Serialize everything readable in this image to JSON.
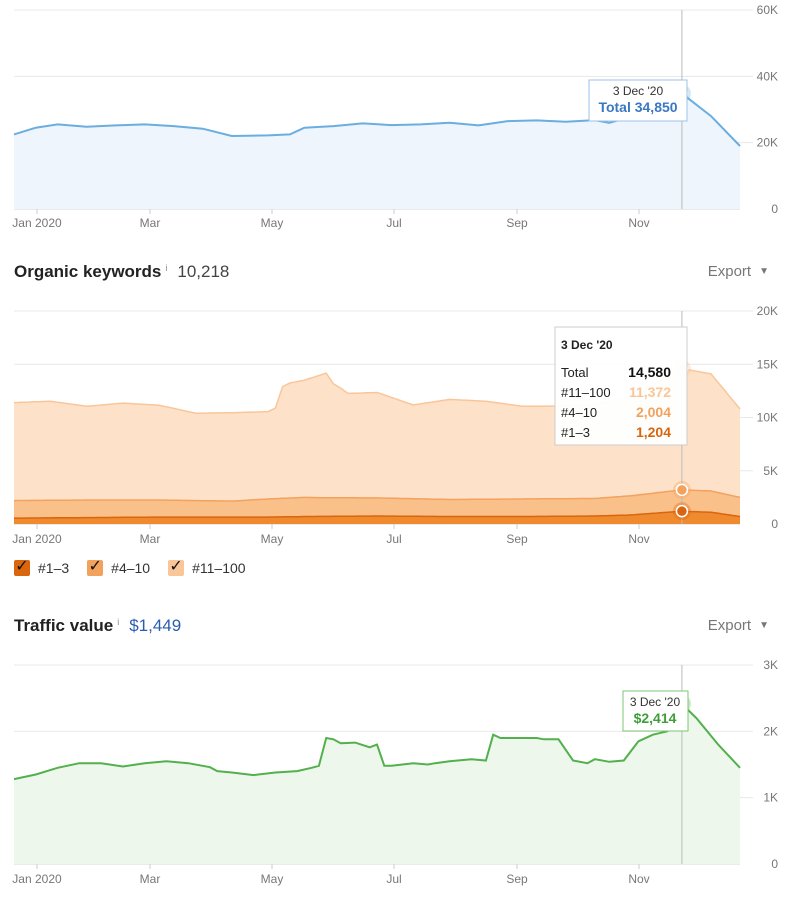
{
  "colors": {
    "traffic_line": "#6aaee0",
    "traffic_fill": "#eef5fd",
    "kw_11_100": "#f9c69a",
    "kw_4_10": "#f3a25e",
    "kw_1_3": "#ec7a1c",
    "value_line": "#52b04d",
    "value_fill": "#eef7ec",
    "tooltip_blue": "#3a78c3",
    "tooltip_green": "#3f9e3a",
    "grid": "#e8e8e8",
    "axis_text": "#777777"
  },
  "x_axis_labels": [
    "Jan 2020",
    "Mar",
    "May",
    "Jul",
    "Sep",
    "Nov"
  ],
  "organic_keywords": {
    "title": "Organic keywords",
    "info_icon": "i",
    "value": "10,218",
    "export_label": "Export"
  },
  "traffic_value": {
    "title": "Traffic value",
    "info_icon": "i",
    "value": "$1,449",
    "export_label": "Export"
  },
  "legend": [
    {
      "label": "#1–3",
      "color": "#d9650f"
    },
    {
      "label": "#4–10",
      "color": "#f3a25e"
    },
    {
      "label": "#11–100",
      "color": "#f9c69a"
    }
  ],
  "chart_data": [
    {
      "type": "area",
      "ylim": [
        0,
        60000
      ],
      "y_ticks": [
        "60K",
        "40K",
        "20K",
        "0"
      ],
      "y_tick_values": [
        60000,
        40000,
        20000,
        0
      ],
      "x_ticks": [
        "Jan 2020",
        "Mar",
        "May",
        "Jul",
        "Sep",
        "Nov"
      ],
      "series": [
        {
          "key": "total",
          "x": [
            0,
            0.03,
            0.06,
            0.1,
            0.14,
            0.18,
            0.22,
            0.26,
            0.3,
            0.35,
            0.38,
            0.4,
            0.44,
            0.48,
            0.52,
            0.56,
            0.6,
            0.64,
            0.68,
            0.72,
            0.76,
            0.8,
            0.82,
            0.86,
            0.89,
            0.92,
            0.96,
            1.0
          ],
          "values": [
            22500,
            24500,
            25500,
            24800,
            25200,
            25500,
            25000,
            24200,
            22000,
            22200,
            22500,
            24500,
            25000,
            25800,
            25300,
            25500,
            26000,
            25200,
            26500,
            26700,
            26300,
            26800,
            26000,
            28500,
            32000,
            34850,
            28000,
            19000
          ]
        }
      ],
      "tooltip": {
        "date": "3 Dec '20",
        "label": "Total 34,850",
        "x": 0.92
      }
    },
    {
      "type": "area",
      "ylim": [
        0,
        20000
      ],
      "y_ticks": [
        "20K",
        "15K",
        "10K",
        "5K",
        "0"
      ],
      "y_tick_values": [
        20000,
        15000,
        10000,
        5000,
        0
      ],
      "x_ticks": [
        "Jan 2020",
        "Mar",
        "May",
        "Jul",
        "Sep",
        "Nov"
      ],
      "stacked": true,
      "series": [
        {
          "name": "#1–3",
          "key": "kw_1_3",
          "x": [
            0,
            0.1,
            0.2,
            0.3,
            0.35,
            0.4,
            0.5,
            0.6,
            0.7,
            0.8,
            0.85,
            0.92,
            0.96,
            1.0
          ],
          "values": [
            550,
            600,
            650,
            650,
            650,
            700,
            750,
            700,
            700,
            750,
            850,
            1204,
            1100,
            700
          ]
        },
        {
          "name": "#4–10",
          "key": "kw_4_10",
          "x": [
            0,
            0.1,
            0.2,
            0.3,
            0.35,
            0.4,
            0.43,
            0.5,
            0.6,
            0.7,
            0.8,
            0.85,
            0.92,
            0.96,
            1.0
          ],
          "values": [
            1650,
            1650,
            1600,
            1500,
            1700,
            1800,
            1750,
            1700,
            1600,
            1650,
            1650,
            1800,
            2004,
            2000,
            1800
          ]
        },
        {
          "name": "#11–100",
          "key": "kw_11_100",
          "x": [
            0,
            0.05,
            0.1,
            0.15,
            0.2,
            0.25,
            0.3,
            0.35,
            0.36,
            0.37,
            0.38,
            0.4,
            0.43,
            0.44,
            0.45,
            0.46,
            0.5,
            0.55,
            0.6,
            0.65,
            0.7,
            0.75,
            0.8,
            0.85,
            0.92,
            0.96,
            1.0
          ],
          "values": [
            9200,
            9300,
            8800,
            9100,
            8900,
            8200,
            8300,
            8200,
            8500,
            10500,
            10800,
            11000,
            11700,
            10700,
            10300,
            9800,
            9900,
            8800,
            9400,
            9200,
            8700,
            8700,
            8800,
            9200,
            11372,
            11000,
            8300
          ]
        }
      ],
      "tooltip": {
        "date": "3 Dec '20",
        "rows": [
          {
            "label": "Total",
            "value": "14,580"
          },
          {
            "label": "#11–100",
            "value": "11,372"
          },
          {
            "label": "#4–10",
            "value": "2,004"
          },
          {
            "label": "#1–3",
            "value": "1,204"
          }
        ],
        "x": 0.92
      }
    },
    {
      "type": "area",
      "ylim": [
        0,
        3000
      ],
      "y_ticks": [
        "3K",
        "2K",
        "1K",
        "0"
      ],
      "y_tick_values": [
        3000,
        2000,
        1000,
        0
      ],
      "x_ticks": [
        "Jan 2020",
        "Mar",
        "May",
        "Jul",
        "Sep",
        "Nov"
      ],
      "series": [
        {
          "key": "value",
          "x": [
            0,
            0.03,
            0.06,
            0.09,
            0.12,
            0.15,
            0.18,
            0.21,
            0.24,
            0.27,
            0.28,
            0.3,
            0.33,
            0.36,
            0.39,
            0.41,
            0.42,
            0.43,
            0.44,
            0.45,
            0.47,
            0.49,
            0.5,
            0.51,
            0.52,
            0.55,
            0.57,
            0.58,
            0.6,
            0.63,
            0.65,
            0.66,
            0.67,
            0.7,
            0.72,
            0.73,
            0.75,
            0.77,
            0.79,
            0.8,
            0.82,
            0.84,
            0.86,
            0.88,
            0.9,
            0.92,
            0.94,
            0.97,
            1.0
          ],
          "values": [
            1280,
            1350,
            1450,
            1520,
            1520,
            1470,
            1520,
            1550,
            1520,
            1460,
            1400,
            1380,
            1340,
            1380,
            1400,
            1450,
            1480,
            1900,
            1880,
            1820,
            1830,
            1760,
            1800,
            1480,
            1480,
            1520,
            1500,
            1520,
            1550,
            1580,
            1560,
            1950,
            1900,
            1900,
            1900,
            1880,
            1880,
            1560,
            1520,
            1580,
            1540,
            1560,
            1850,
            1950,
            2000,
            2414,
            2200,
            1800,
            1450
          ]
        }
      ],
      "tooltip": {
        "date": "3 Dec '20",
        "label": "$2,414",
        "x": 0.92
      }
    }
  ]
}
